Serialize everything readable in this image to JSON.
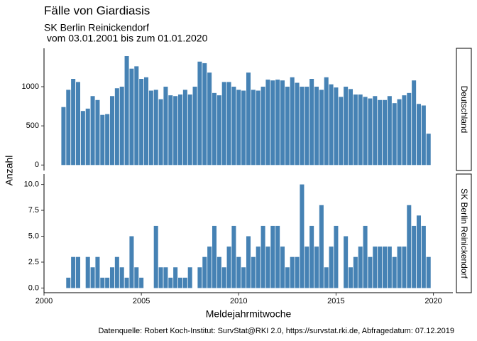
{
  "chart_data": {
    "type": "bar",
    "title": "Fälle von Giardiasis",
    "subtitle": [
      "SK Berlin Reinickendorf",
      " vom 03.01.2001 bis zum 01.01.2020"
    ],
    "ylabel": "Anzahl",
    "xlabel": "Meldejahrmitwoche",
    "caption": "Datenquelle: Robert Koch-Institut: SurvStat@RKI 2.0, https://survstat.rki.de, Abfragedatum: 07.12.2019",
    "color": "#4682b4",
    "x": [
      2001,
      2001.25,
      2001.5,
      2001.75,
      2002,
      2002.25,
      2002.5,
      2002.75,
      2003,
      2003.25,
      2003.5,
      2003.75,
      2004,
      2004.25,
      2004.5,
      2004.75,
      2005,
      2005.25,
      2005.5,
      2005.75,
      2006,
      2006.25,
      2006.5,
      2006.75,
      2007,
      2007.25,
      2007.5,
      2007.75,
      2008,
      2008.25,
      2008.5,
      2008.75,
      2009,
      2009.25,
      2009.5,
      2009.75,
      2010,
      2010.25,
      2010.5,
      2010.75,
      2011,
      2011.25,
      2011.5,
      2011.75,
      2012,
      2012.25,
      2012.5,
      2012.75,
      2013,
      2013.25,
      2013.5,
      2013.75,
      2014,
      2014.25,
      2014.5,
      2014.75,
      2015,
      2015.25,
      2015.5,
      2015.75,
      2016,
      2016.25,
      2016.5,
      2016.75,
      2017,
      2017.25,
      2017.5,
      2017.75,
      2018,
      2018.25,
      2018.5,
      2018.75,
      2019,
      2019.25,
      2019.5,
      2019.75
    ],
    "xlim": [
      2000,
      2021
    ],
    "xticks": [
      2000,
      2005,
      2010,
      2015,
      2020
    ],
    "panels": [
      {
        "label": "Deutschland",
        "ylim": [
          -70,
          1490
        ],
        "yticks": [
          0,
          500,
          1000
        ],
        "values": [
          740,
          960,
          1100,
          1060,
          690,
          720,
          880,
          830,
          640,
          650,
          880,
          980,
          1000,
          1390,
          1230,
          1260,
          1100,
          1120,
          950,
          960,
          840,
          1000,
          890,
          880,
          900,
          960,
          900,
          1000,
          1320,
          1300,
          1180,
          920,
          890,
          1060,
          1060,
          1000,
          960,
          950,
          1180,
          960,
          950,
          1000,
          1090,
          1080,
          1090,
          1080,
          1000,
          1120,
          1050,
          1000,
          1000,
          1100,
          1000,
          960,
          1120,
          1030,
          990,
          870,
          1000,
          970,
          900,
          900,
          870,
          850,
          880,
          830,
          830,
          880,
          790,
          840,
          890,
          920,
          1080,
          780,
          760,
          400
        ]
      },
      {
        "label": "SK Berlin Reinickendorf",
        "ylim": [
          -0.45,
          11
        ],
        "yticks": [
          {
            "value": 0,
            "label": "0.0"
          },
          {
            "value": 2.5,
            "label": "2.5"
          },
          {
            "value": 5,
            "label": "5.0"
          },
          {
            "value": 7.5,
            "label": "7.5"
          },
          {
            "value": 10,
            "label": "10.0"
          }
        ],
        "values": [
          0,
          1,
          3,
          3,
          0,
          3,
          2,
          3,
          1,
          1,
          2,
          3,
          2,
          1,
          5,
          2,
          1,
          0,
          0,
          6,
          2,
          2,
          1,
          2,
          1,
          1,
          2,
          0,
          2,
          3,
          4,
          6,
          3,
          2,
          4,
          6,
          3,
          2,
          5,
          3,
          4,
          6,
          4,
          6,
          6,
          4,
          2,
          3,
          3,
          10,
          4,
          6,
          4,
          8,
          2,
          4,
          6,
          0,
          5,
          2,
          3,
          4,
          6,
          3,
          4,
          4,
          4,
          4,
          3,
          4,
          4,
          8,
          6,
          7,
          6,
          3
        ]
      }
    ]
  }
}
